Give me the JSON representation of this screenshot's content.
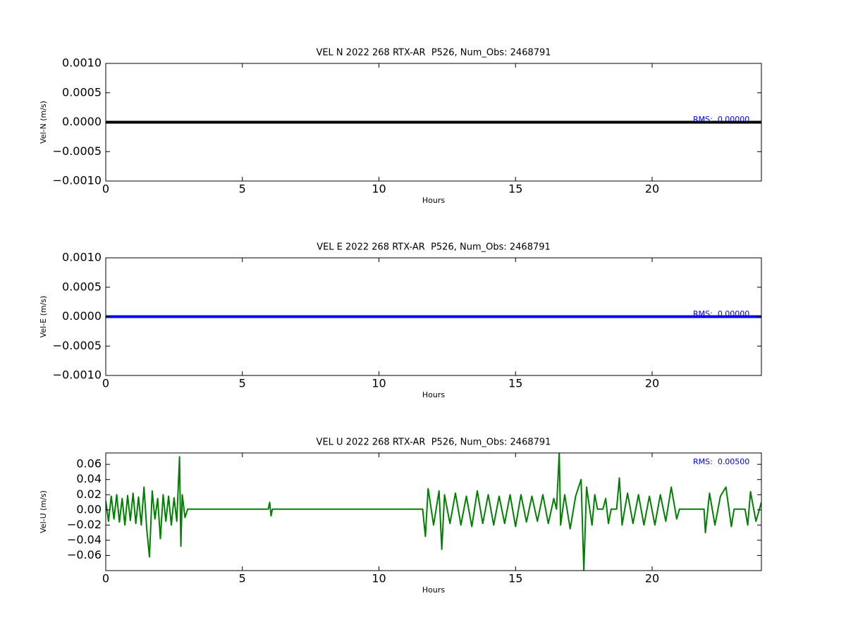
{
  "chart_data": [
    {
      "type": "line",
      "title": "VEL N 2022 268 RTX-AR  P526, Num_Obs: 2468791",
      "x_label": "Hours",
      "y_label": "Vel-N (m/s)",
      "annotation": "RMS:  0.00000",
      "x": [
        0,
        24
      ],
      "series": [
        {
          "name": "Vel-N",
          "color": "#000000",
          "values": [
            0,
            0
          ]
        }
      ],
      "xlim": [
        0,
        24
      ],
      "xticks": [
        0,
        5,
        10,
        15,
        20
      ],
      "ylim": [
        -0.001,
        0.001
      ],
      "yticks": [
        {
          "value": 0.001,
          "label": "0.0010"
        },
        {
          "value": 0.0005,
          "label": "0.0005"
        },
        {
          "value": 0,
          "label": "0.0000"
        },
        {
          "value": -0.0005,
          "label": "−0.0005"
        },
        {
          "value": -0.001,
          "label": "−0.0010"
        }
      ]
    },
    {
      "type": "line",
      "title": "VEL E 2022 268 RTX-AR  P526, Num_Obs: 2468791",
      "x_label": "Hours",
      "y_label": "Vel-E (m/s)",
      "annotation": "RMS:  0.00000",
      "x": [
        0,
        24
      ],
      "series": [
        {
          "name": "Vel-E",
          "color": "#0000ff",
          "values": [
            0,
            0
          ]
        }
      ],
      "xlim": [
        0,
        24
      ],
      "xticks": [
        0,
        5,
        10,
        15,
        20
      ],
      "ylim": [
        -0.001,
        0.001
      ],
      "yticks": [
        {
          "value": 0.001,
          "label": "0.0010"
        },
        {
          "value": 0.0005,
          "label": "0.0005"
        },
        {
          "value": 0,
          "label": "0.0000"
        },
        {
          "value": -0.0005,
          "label": "−0.0005"
        },
        {
          "value": -0.001,
          "label": "−0.0010"
        }
      ]
    },
    {
      "type": "line",
      "title": "VEL U 2022 268 RTX-AR  P526, Num_Obs: 2468791",
      "x_label": "Hours",
      "y_label": "Vel-U (m/s)",
      "annotation": "RMS:  0.00500",
      "x": [
        0,
        0.1,
        0.2,
        0.3,
        0.4,
        0.5,
        0.6,
        0.7,
        0.8,
        0.9,
        1.0,
        1.1,
        1.2,
        1.3,
        1.4,
        1.5,
        1.6,
        1.7,
        1.8,
        1.9,
        2.0,
        2.1,
        2.2,
        2.3,
        2.4,
        2.5,
        2.6,
        2.7,
        2.75,
        2.8,
        2.9,
        3.0,
        5.95,
        6.0,
        6.05,
        6.1,
        11.6,
        11.7,
        11.8,
        12.0,
        12.2,
        12.3,
        12.4,
        12.6,
        12.8,
        13.0,
        13.2,
        13.4,
        13.6,
        13.8,
        14.0,
        14.2,
        14.4,
        14.6,
        14.8,
        15.0,
        15.2,
        15.4,
        15.6,
        15.8,
        16.0,
        16.2,
        16.4,
        16.5,
        16.6,
        16.65,
        16.8,
        17.0,
        17.2,
        17.4,
        17.5,
        17.6,
        17.8,
        17.9,
        18.0,
        18.2,
        18.3,
        18.4,
        18.5,
        18.7,
        18.8,
        18.9,
        19.1,
        19.3,
        19.5,
        19.7,
        19.9,
        20.1,
        20.3,
        20.5,
        20.7,
        20.9,
        21.0,
        21.9,
        21.95,
        22.1,
        22.3,
        22.5,
        22.7,
        22.9,
        23.0,
        23.4,
        23.5,
        23.6,
        23.8,
        24.0
      ],
      "series": [
        {
          "name": "Vel-U",
          "color": "#008000",
          "values": [
            0.012,
            -0.015,
            0.018,
            -0.012,
            0.02,
            -0.016,
            0.015,
            -0.02,
            0.019,
            -0.014,
            0.022,
            -0.018,
            0.017,
            -0.02,
            0.03,
            -0.025,
            -0.062,
            0.025,
            -0.012,
            0.015,
            -0.038,
            0.02,
            -0.015,
            0.018,
            -0.02,
            0.016,
            -0.015,
            0.07,
            -0.048,
            0.02,
            -0.01,
            0.001,
            0.001,
            0.01,
            -0.008,
            0.001,
            0.001,
            -0.035,
            0.028,
            -0.02,
            0.025,
            -0.052,
            0.02,
            -0.018,
            0.022,
            -0.02,
            0.018,
            -0.022,
            0.025,
            -0.018,
            0.02,
            -0.02,
            0.018,
            -0.018,
            0.02,
            -0.022,
            0.02,
            -0.016,
            0.018,
            -0.015,
            0.02,
            -0.018,
            0.015,
            0.001,
            0.075,
            -0.02,
            0.02,
            -0.025,
            0.018,
            0.04,
            -0.08,
            0.03,
            -0.02,
            0.02,
            0.001,
            0.001,
            0.015,
            -0.018,
            0.001,
            0.001,
            0.042,
            -0.02,
            0.022,
            -0.018,
            0.02,
            -0.02,
            0.018,
            -0.02,
            0.02,
            -0.015,
            0.03,
            -0.012,
            0.001,
            0.001,
            -0.03,
            0.022,
            -0.02,
            0.018,
            0.03,
            -0.022,
            0.001,
            0.001,
            -0.02,
            0.024,
            -0.015,
            0.01
          ]
        }
      ],
      "xlim": [
        0,
        24
      ],
      "xticks": [
        0,
        5,
        10,
        15,
        20
      ],
      "ylim": [
        -0.08,
        0.075
      ],
      "yticks": [
        0.06,
        0.04,
        0.02,
        {
          "value": 0,
          "label": "0.00"
        },
        {
          "value": -0.02,
          "label": "−0.02"
        },
        {
          "value": -0.04,
          "label": "−0.04"
        },
        {
          "value": -0.06,
          "label": "−0.06"
        }
      ]
    }
  ]
}
